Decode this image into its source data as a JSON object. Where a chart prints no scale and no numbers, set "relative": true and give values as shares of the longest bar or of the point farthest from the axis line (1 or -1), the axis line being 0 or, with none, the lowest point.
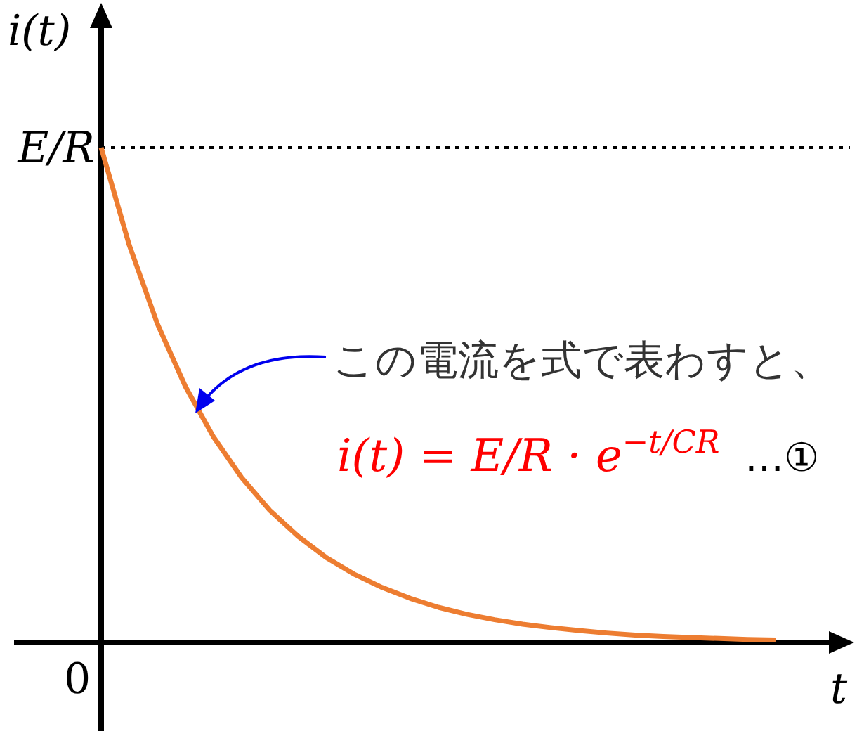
{
  "chart_data": {
    "type": "line",
    "xlabel": "t",
    "ylabel": "i(t)",
    "categories": [
      null,
      null,
      null,
      null,
      null,
      null,
      null,
      null,
      null,
      null,
      null,
      null,
      null,
      null,
      null,
      null,
      null,
      null,
      null,
      null,
      null,
      null,
      null,
      null,
      null
    ],
    "series": [
      {
        "color": "#ed7d31",
        "values": [
          1,
          0.803,
          0.644,
          0.517,
          0.415,
          0.333,
          0.267,
          0.215,
          0.172,
          0.138,
          0.111,
          0.089,
          0.071,
          0.057,
          0.046,
          0.037,
          0.03,
          0.024,
          0.019,
          0.015,
          0.012,
          0.01,
          0.008,
          0.006,
          0.005
        ]
      }
    ],
    "relative": true,
    "ref_lines": [
      {
        "axis": "y",
        "value": 1,
        "label": "E/R",
        "color": "#000000",
        "line_style": "dotted"
      }
    ],
    "annotations": [
      "この電流を式で表わすと、",
      "i(t) = E/R · e$^{−t/CR}$",
      "…①",
      "0"
    ],
    "marker": "none",
    "line_style": "solid"
  }
}
